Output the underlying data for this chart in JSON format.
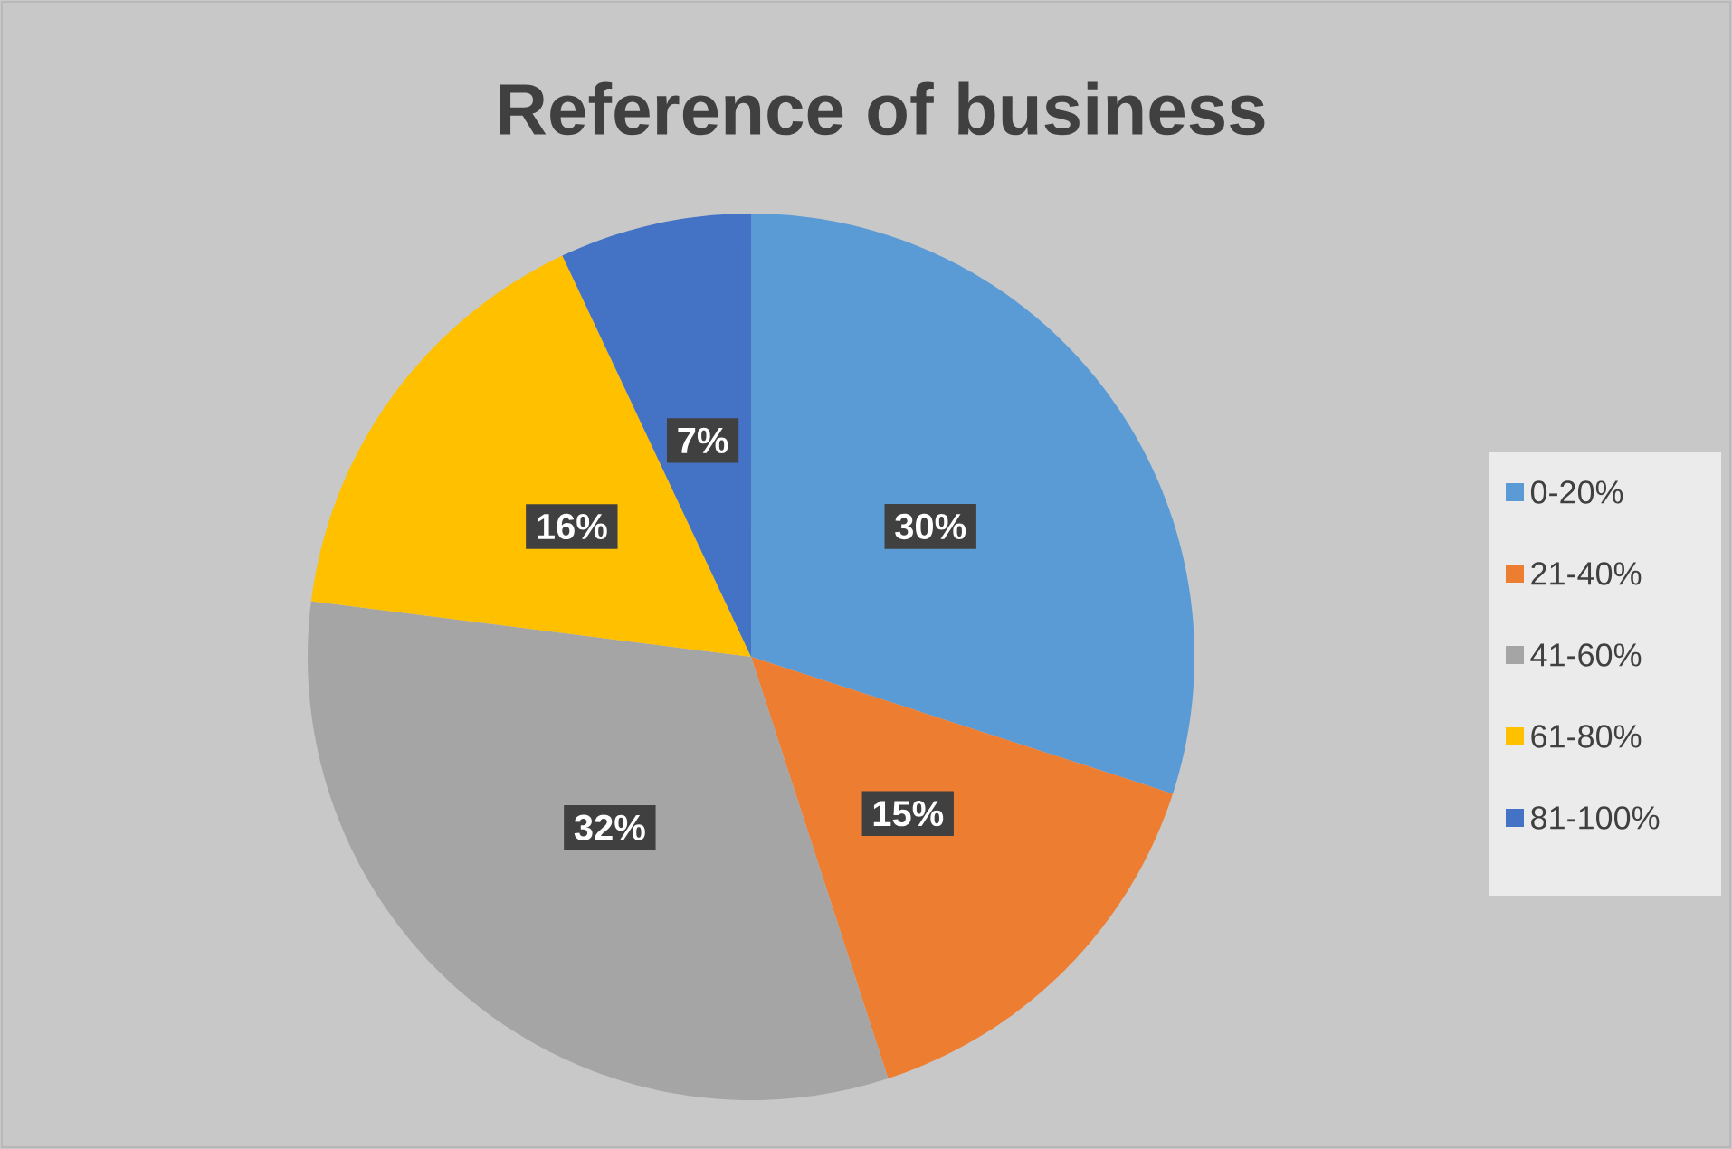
{
  "chart_data": {
    "type": "pie",
    "title": "Reference of business",
    "categories": [
      "0-20%",
      "21-40%",
      "41-60%",
      "61-80%",
      "81-100%"
    ],
    "values": [
      30,
      15,
      32,
      16,
      7
    ],
    "value_labels": [
      "30%",
      "15%",
      "32%",
      "16%",
      "7%"
    ],
    "colors": [
      "#5b9bd5",
      "#ed7d31",
      "#a5a5a5",
      "#ffc000",
      "#4472c4"
    ],
    "legend": "right"
  }
}
